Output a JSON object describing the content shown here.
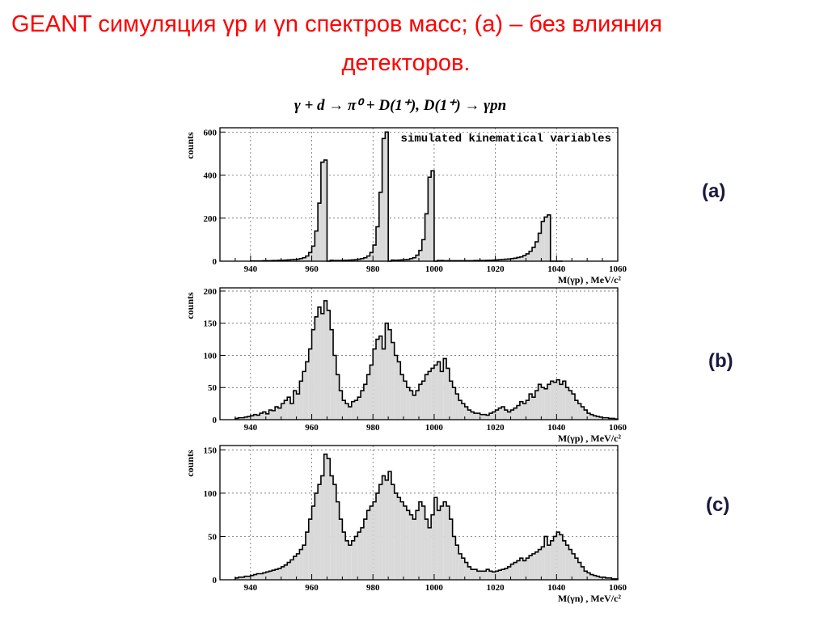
{
  "slide": {
    "title_line1": "GEANT симуляция γp и γn спектров масс; (a) – без влияния",
    "title_line2": "детекторов.",
    "reaction": "γ + d → π⁰ + D(1⁺),   D(1⁺) → γpn",
    "colors": {
      "title": "#ff0000",
      "hist_fill": "#d9d9d9",
      "line": "#000000"
    }
  },
  "chart_data": [
    {
      "type": "bar",
      "panel_label": "(a)",
      "annotation": "simulated kinematical variables",
      "xlabel": "M(γp) , MeV/c²",
      "ylabel": "counts",
      "xlim": [
        930,
        1060
      ],
      "ylim": [
        0,
        620
      ],
      "xticks": [
        940,
        960,
        980,
        1000,
        1020,
        1040,
        1060
      ],
      "yticks": [
        0,
        200,
        400,
        600
      ],
      "grid": true,
      "bin_width": 1,
      "x": [
        940,
        941,
        942,
        943,
        944,
        945,
        946,
        947,
        948,
        949,
        950,
        951,
        952,
        953,
        954,
        955,
        956,
        957,
        958,
        959,
        960,
        961,
        962,
        963,
        964,
        965,
        966,
        967,
        968,
        969,
        970,
        971,
        972,
        973,
        974,
        975,
        976,
        977,
        978,
        979,
        980,
        981,
        982,
        983,
        984,
        985,
        986,
        987,
        988,
        989,
        990,
        991,
        992,
        993,
        994,
        995,
        996,
        997,
        998,
        999,
        1000,
        1001,
        1002,
        1003,
        1004,
        1005,
        1006,
        1007,
        1008,
        1009,
        1010,
        1011,
        1012,
        1013,
        1014,
        1015,
        1016,
        1017,
        1018,
        1019,
        1020,
        1021,
        1022,
        1023,
        1024,
        1025,
        1026,
        1027,
        1028,
        1029,
        1030,
        1031,
        1032,
        1033,
        1034,
        1035,
        1036,
        1037,
        1038,
        1039,
        1040,
        1041
      ],
      "values": [
        1,
        1,
        1,
        1,
        2,
        2,
        2,
        3,
        3,
        4,
        4,
        5,
        6,
        7,
        8,
        9,
        12,
        16,
        24,
        40,
        70,
        140,
        270,
        460,
        470,
        0,
        4,
        3,
        3,
        3,
        4,
        4,
        5,
        6,
        7,
        9,
        12,
        16,
        24,
        40,
        75,
        160,
        320,
        570,
        600,
        0,
        5,
        4,
        5,
        6,
        7,
        8,
        12,
        16,
        28,
        50,
        100,
        220,
        390,
        420,
        0,
        3,
        3,
        2,
        2,
        2,
        2,
        2,
        2,
        2,
        2,
        2,
        2,
        3,
        3,
        3,
        3,
        4,
        4,
        5,
        6,
        7,
        8,
        9,
        10,
        12,
        14,
        17,
        20,
        26,
        34,
        46,
        64,
        90,
        130,
        185,
        205,
        215,
        0,
        0,
        0,
        0
      ]
    },
    {
      "type": "bar",
      "panel_label": "(b)",
      "xlabel": "M(γp) , MeV/c²",
      "ylabel": "counts",
      "xlim": [
        930,
        1060
      ],
      "ylim": [
        0,
        205
      ],
      "xticks": [
        940,
        960,
        980,
        1000,
        1020,
        1040,
        1060
      ],
      "yticks": [
        0,
        50,
        100,
        150,
        200
      ],
      "grid": true,
      "bin_width": 1,
      "x": [
        935,
        936,
        937,
        938,
        939,
        940,
        941,
        942,
        943,
        944,
        945,
        946,
        947,
        948,
        949,
        950,
        951,
        952,
        953,
        954,
        955,
        956,
        957,
        958,
        959,
        960,
        961,
        962,
        963,
        964,
        965,
        966,
        967,
        968,
        969,
        970,
        971,
        972,
        973,
        974,
        975,
        976,
        977,
        978,
        979,
        980,
        981,
        982,
        983,
        984,
        985,
        986,
        987,
        988,
        989,
        990,
        991,
        992,
        993,
        994,
        995,
        996,
        997,
        998,
        999,
        1000,
        1001,
        1002,
        1003,
        1004,
        1005,
        1006,
        1007,
        1008,
        1009,
        1010,
        1011,
        1012,
        1013,
        1014,
        1015,
        1016,
        1017,
        1018,
        1019,
        1020,
        1021,
        1022,
        1023,
        1024,
        1025,
        1026,
        1027,
        1028,
        1029,
        1030,
        1031,
        1032,
        1033,
        1034,
        1035,
        1036,
        1037,
        1038,
        1039,
        1040,
        1041,
        1042,
        1043,
        1044,
        1045,
        1046,
        1047,
        1048,
        1049,
        1050,
        1051,
        1052,
        1053,
        1054,
        1055,
        1056,
        1057,
        1058,
        1059
      ],
      "values": [
        2,
        3,
        3,
        4,
        5,
        6,
        8,
        7,
        10,
        12,
        9,
        15,
        14,
        20,
        18,
        25,
        30,
        35,
        25,
        45,
        40,
        60,
        75,
        90,
        110,
        140,
        160,
        175,
        165,
        185,
        170,
        140,
        100,
        70,
        45,
        30,
        25,
        20,
        28,
        30,
        35,
        45,
        55,
        70,
        85,
        110,
        125,
        130,
        110,
        150,
        140,
        120,
        100,
        90,
        70,
        60,
        50,
        45,
        38,
        45,
        55,
        60,
        70,
        75,
        80,
        85,
        90,
        75,
        95,
        80,
        60,
        50,
        40,
        30,
        25,
        20,
        15,
        12,
        10,
        10,
        8,
        8,
        7,
        10,
        12,
        15,
        18,
        20,
        15,
        12,
        15,
        18,
        22,
        28,
        25,
        30,
        40,
        35,
        45,
        55,
        50,
        48,
        55,
        60,
        58,
        62,
        55,
        60,
        50,
        45,
        40,
        30,
        25,
        20,
        15,
        10,
        8,
        6,
        5,
        4,
        3,
        3,
        2,
        2,
        1
      ]
    },
    {
      "type": "bar",
      "panel_label": "(c)",
      "xlabel": "M(γn) , MeV/c²",
      "ylabel": "counts",
      "xlim": [
        930,
        1060
      ],
      "ylim": [
        0,
        155
      ],
      "xticks": [
        940,
        960,
        980,
        1000,
        1020,
        1040,
        1060
      ],
      "yticks": [
        0,
        50,
        100,
        150
      ],
      "grid": true,
      "bin_width": 1,
      "x": [
        935,
        936,
        937,
        938,
        939,
        940,
        941,
        942,
        943,
        944,
        945,
        946,
        947,
        948,
        949,
        950,
        951,
        952,
        953,
        954,
        955,
        956,
        957,
        958,
        959,
        960,
        961,
        962,
        963,
        964,
        965,
        966,
        967,
        968,
        969,
        970,
        971,
        972,
        973,
        974,
        975,
        976,
        977,
        978,
        979,
        980,
        981,
        982,
        983,
        984,
        985,
        986,
        987,
        988,
        989,
        990,
        991,
        992,
        993,
        994,
        995,
        996,
        997,
        998,
        999,
        1000,
        1001,
        1002,
        1003,
        1004,
        1005,
        1006,
        1007,
        1008,
        1009,
        1010,
        1011,
        1012,
        1013,
        1014,
        1015,
        1016,
        1017,
        1018,
        1019,
        1020,
        1021,
        1022,
        1023,
        1024,
        1025,
        1026,
        1027,
        1028,
        1029,
        1030,
        1031,
        1032,
        1033,
        1034,
        1035,
        1036,
        1037,
        1038,
        1039,
        1040,
        1041,
        1042,
        1043,
        1044,
        1045,
        1046,
        1047,
        1048,
        1049,
        1050,
        1051,
        1052,
        1053,
        1054,
        1055,
        1056,
        1057,
        1058,
        1059
      ],
      "values": [
        2,
        3,
        3,
        4,
        4,
        5,
        6,
        7,
        7,
        8,
        9,
        10,
        11,
        12,
        13,
        15,
        17,
        20,
        23,
        27,
        30,
        35,
        40,
        55,
        70,
        85,
        100,
        110,
        120,
        145,
        140,
        120,
        110,
        90,
        70,
        55,
        45,
        40,
        45,
        50,
        55,
        60,
        70,
        80,
        85,
        90,
        100,
        110,
        120,
        115,
        125,
        110,
        100,
        95,
        90,
        85,
        80,
        75,
        70,
        80,
        90,
        85,
        70,
        60,
        75,
        95,
        80,
        85,
        90,
        85,
        70,
        50,
        40,
        30,
        25,
        20,
        15,
        12,
        12,
        10,
        10,
        10,
        12,
        10,
        9,
        10,
        11,
        12,
        13,
        15,
        18,
        20,
        22,
        25,
        22,
        25,
        28,
        30,
        32,
        35,
        38,
        50,
        40,
        45,
        50,
        55,
        52,
        45,
        40,
        35,
        30,
        25,
        20,
        15,
        10,
        8,
        6,
        5,
        4,
        3,
        3,
        2,
        2,
        1,
        1
      ]
    }
  ]
}
